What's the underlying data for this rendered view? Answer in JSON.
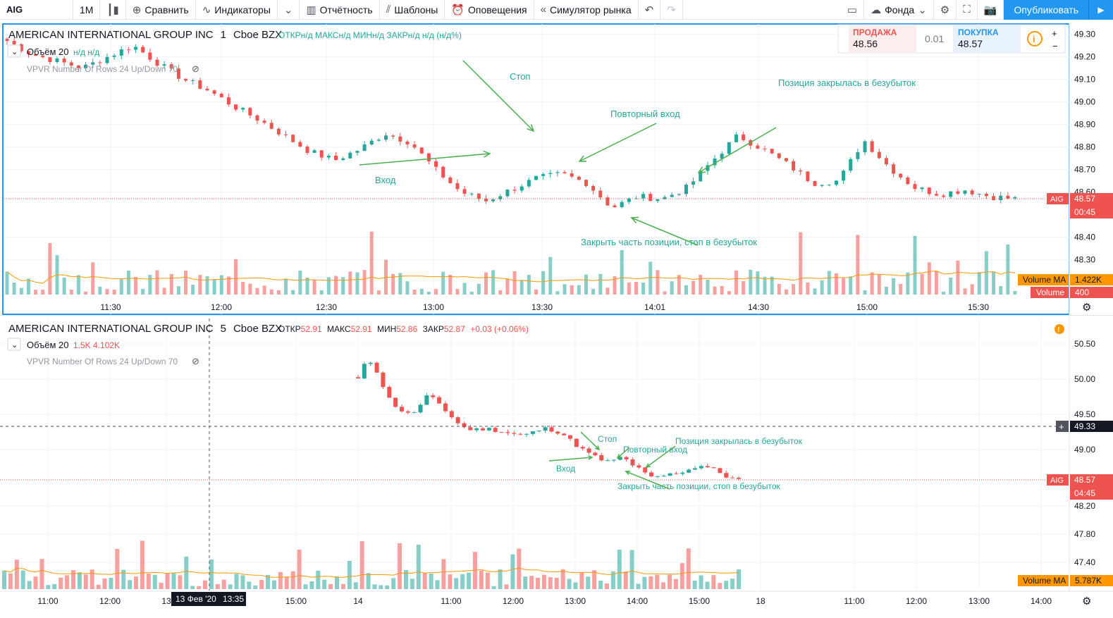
{
  "toolbar": {
    "symbol": "AIG",
    "interval": "1М",
    "candle_icon": "candles-icon",
    "compare": "Сравнить",
    "indicators": "Индикаторы",
    "reporting": "Отчётность",
    "templates": "Шаблоны",
    "alerts": "Оповещения",
    "replay": "Симулятор рынка",
    "fund": "Фонда",
    "publish": "Опубликовать"
  },
  "trade_widget": {
    "sell_label": "ПРОДАЖА",
    "sell_price": "48.56",
    "spread": "0.01",
    "buy_label": "ПОКУПКА",
    "buy_price": "48.57"
  },
  "chart_data": [
    {
      "type": "candlestick",
      "pane": "top",
      "interval": "1",
      "legend": {
        "title": "AMERICAN INTERNATIONAL GROUP INC",
        "interval": "1",
        "exchange": "Cboe BZX",
        "ohlc": "ОТКРн/д  МАКСн/д  МИНн/д  ЗАКРн/д  н/д (н/д%)",
        "volume_label": "Объём 20",
        "volume_values": "н/д  н/д",
        "vpvr": "VPVR Number Of Rows 24 Up/Down 70"
      },
      "x_ticks": [
        "11:30",
        "12:00",
        "12:30",
        "13:00",
        "13:30",
        "14:01",
        "14:30",
        "15:00",
        "15:30"
      ],
      "y_ticks": [
        49.3,
        49.2,
        49.1,
        49.0,
        48.9,
        48.8,
        48.7,
        48.6,
        48.4,
        48.3
      ],
      "y_tick_labels": [
        "49.30",
        "49.20",
        "49.10",
        "49.00",
        "48.90",
        "48.80",
        "48.70",
        "48.60",
        "48.40",
        "48.30"
      ],
      "ylim": [
        48.22,
        49.32
      ],
      "last_price": 48.57,
      "last_price_label": "48.57",
      "last_symbol": "AIG",
      "countdown": "00:45",
      "volume_ma_label": "Volume MA",
      "volume_ma_value": "1.422K",
      "volume_label": "Volume",
      "volume_value": "400",
      "close_series_approx": [
        49.27,
        49.21,
        49.18,
        49.15,
        49.2,
        49.25,
        49.17,
        49.1,
        49.05,
        48.98,
        48.92,
        48.85,
        48.78,
        48.74,
        48.79,
        48.86,
        48.82,
        48.7,
        48.6,
        48.56,
        48.61,
        48.66,
        48.68,
        48.64,
        48.53,
        48.58,
        48.57,
        48.62,
        48.74,
        48.85,
        48.79,
        48.72,
        48.64,
        48.65,
        48.83,
        48.71,
        48.62,
        48.59,
        48.61,
        48.58,
        48.57
      ],
      "annotations": [
        {
          "text": "Стоп"
        },
        {
          "text": "Повторный вход"
        },
        {
          "text": "Вход"
        },
        {
          "text": "Позиция закрылась в безубыток"
        },
        {
          "text": "Закрыть часть позиции, стоп в безубыток"
        }
      ]
    },
    {
      "type": "candlestick",
      "pane": "bottom",
      "interval": "5",
      "legend": {
        "title": "AMERICAN INTERNATIONAL GROUP INC",
        "interval": "5",
        "exchange": "Cboe BZX",
        "open_label": "ОТКР",
        "open": "52.91",
        "high_label": "МАКС",
        "high": "52.91",
        "low_label": "МИН",
        "low": "52.86",
        "close_label": "ЗАКР",
        "close": "52.87",
        "change": "+0.03 (+0.06%)",
        "volume_label": "Объём 20",
        "volume_values": "1.5K  4.102K",
        "vpvr": "VPVR Number Of Rows 24 Up/Down 70"
      },
      "x_ticks": [
        "11:00",
        "12:00",
        "13",
        "15:00",
        "14",
        "11:00",
        "12:00",
        "13:00",
        "14:00",
        "15:00",
        "18",
        "11:00",
        "12:00",
        "13:00",
        "14:00"
      ],
      "crosshair_date": "13 Фев '20",
      "crosshair_time": "13:35",
      "crosshair_price": "49.33",
      "y_ticks": [
        50.5,
        50.0,
        49.5,
        49.0,
        48.2,
        47.8,
        47.4
      ],
      "y_tick_labels": [
        "50.50",
        "50.00",
        "49.50",
        "49.00",
        "48.20",
        "47.80",
        "47.40"
      ],
      "ylim": [
        47.2,
        50.7
      ],
      "last_price": 48.57,
      "last_price_label": "48.57",
      "last_symbol": "AIG",
      "countdown": "04:45",
      "volume_ma_label": "Volume MA",
      "volume_ma_value": "5.787K",
      "close_series_approx": [
        50.0,
        50.3,
        50.1,
        49.75,
        49.6,
        49.5,
        49.55,
        49.75,
        49.7,
        49.55,
        49.4,
        49.3,
        49.28,
        49.3,
        49.28,
        49.25,
        49.22,
        49.2,
        49.25,
        49.3,
        49.28,
        49.22,
        49.1,
        49.0,
        48.92,
        48.85,
        48.82,
        48.9,
        48.8,
        48.7,
        48.6,
        48.62,
        48.65,
        48.68,
        48.72,
        48.78,
        48.74,
        48.68,
        48.6,
        48.57
      ],
      "annotations": [
        {
          "text": "Стоп"
        },
        {
          "text": "Повторный вход"
        },
        {
          "text": "Позиция закрылась в безубыток"
        },
        {
          "text": "Вход"
        },
        {
          "text": "Закрыть часть позиции, стоп в безубыток"
        }
      ]
    }
  ],
  "colors": {
    "up": "#26a69a",
    "down": "#ef5350",
    "annotation": "#4caf50",
    "volume_ma": "#ff9800",
    "accent": "#2196f3"
  }
}
